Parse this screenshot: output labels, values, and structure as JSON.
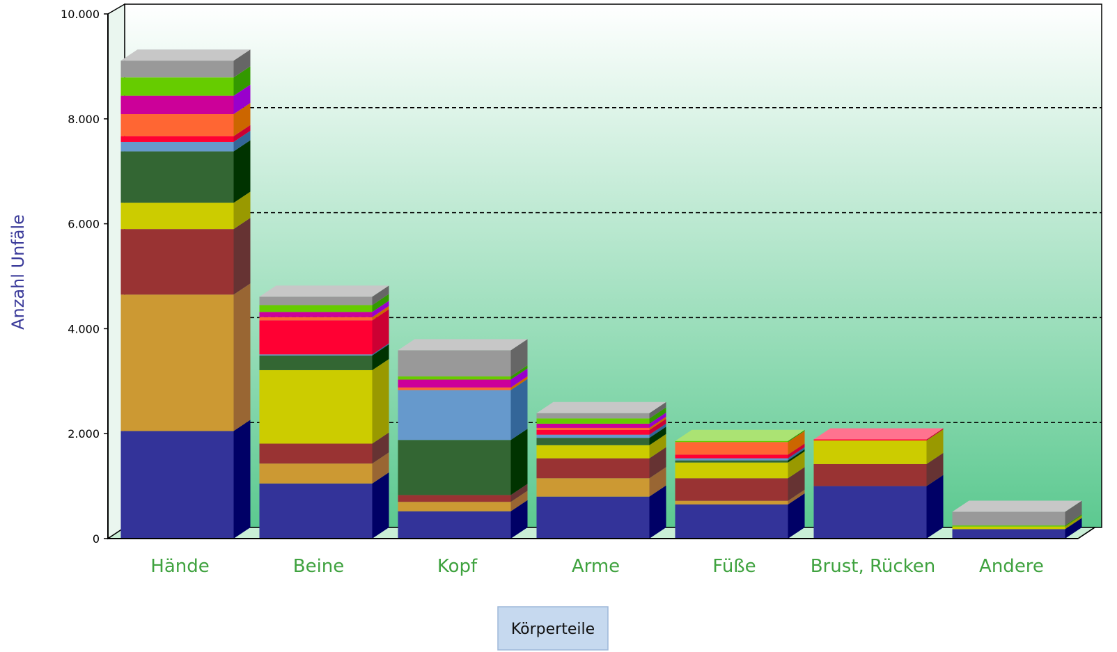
{
  "chart_data": {
    "type": "bar",
    "stacked": true,
    "style": "3d",
    "ylabel": "Anzahl Unfäle",
    "xlabel": "Körperteile",
    "ylim": [
      0,
      10000
    ],
    "yticks": [
      0,
      2000,
      4000,
      6000,
      8000,
      10000
    ],
    "ytick_labels": [
      "0",
      "2.000",
      "4.000",
      "6.000",
      "8.000",
      "10.000"
    ],
    "grid": "dashed horizontal at 2.000, 4.000, 6.000, 8.000",
    "legend": "none",
    "categories": [
      "Hände",
      "Beine",
      "Kopf",
      "Arme",
      "Füße",
      "Brust, Rücken",
      "Andere"
    ],
    "series": [
      {
        "color": "#333399",
        "side_color": "#000066",
        "values": [
          2050,
          1050,
          520,
          800,
          650,
          1000,
          180
        ]
      },
      {
        "color": "#cc9933",
        "side_color": "#996633",
        "values": [
          2600,
          380,
          180,
          350,
          70,
          0,
          0
        ]
      },
      {
        "color": "#993333",
        "side_color": "#663333",
        "values": [
          1250,
          380,
          130,
          380,
          430,
          420,
          0
        ]
      },
      {
        "color": "#cccc00",
        "side_color": "#999900",
        "values": [
          500,
          1400,
          0,
          250,
          300,
          450,
          50
        ]
      },
      {
        "color": "#336633",
        "side_color": "#003300",
        "values": [
          980,
          280,
          1050,
          140,
          40,
          0,
          0
        ]
      },
      {
        "color": "#6699cc",
        "side_color": "#336699",
        "values": [
          180,
          20,
          950,
          60,
          40,
          0,
          0
        ]
      },
      {
        "color": "#ff0033",
        "side_color": "#cc0033",
        "values": [
          110,
          650,
          0,
          90,
          70,
          20,
          0
        ]
      },
      {
        "color": "#ff6633",
        "side_color": "#cc6600",
        "values": [
          420,
          60,
          50,
          40,
          240,
          0,
          0
        ]
      },
      {
        "color": "#cc0099",
        "side_color": "#9900cc",
        "values": [
          350,
          100,
          150,
          80,
          0,
          0,
          0
        ]
      },
      {
        "color": "#66cc00",
        "side_color": "#339900",
        "values": [
          350,
          130,
          60,
          100,
          20,
          0,
          20
        ]
      },
      {
        "color": "#999999",
        "side_color": "#666666",
        "values": [
          320,
          160,
          500,
          100,
          0,
          0,
          260
        ]
      }
    ]
  }
}
